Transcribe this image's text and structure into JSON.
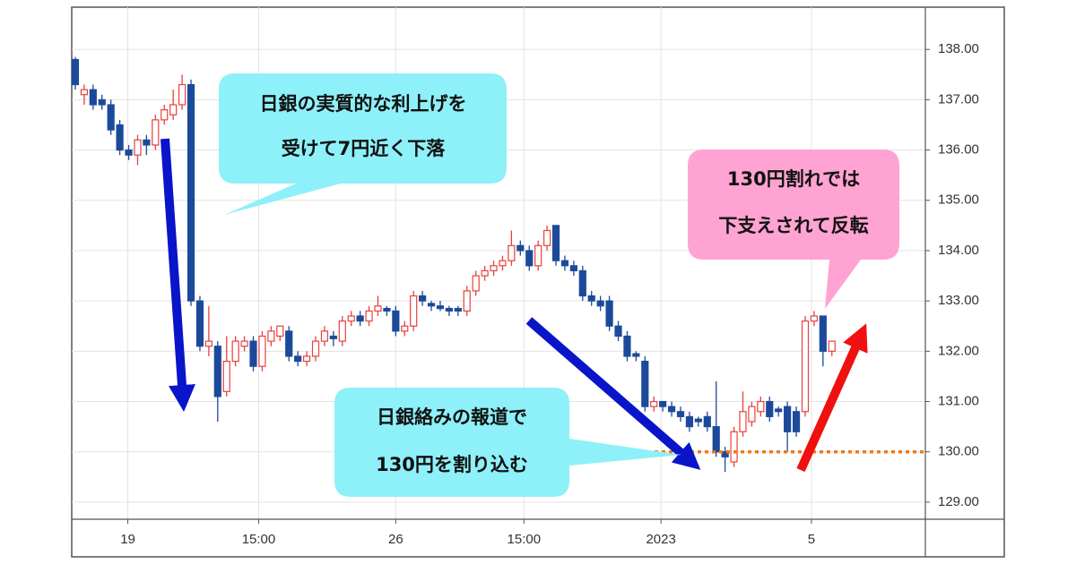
{
  "chart_data": {
    "type": "candlestick",
    "up_color": "#e8413c",
    "down_color": "#1c4a9a",
    "grid": true,
    "open": [
      137.8,
      137.1,
      137.2,
      137.0,
      136.9,
      136.5,
      136.0,
      135.9,
      136.2,
      136.1,
      136.6,
      136.7,
      136.9,
      137.3,
      133.0,
      132.1,
      132.1,
      131.2,
      131.8,
      132.1,
      132.2,
      131.7,
      132.2,
      132.3,
      132.4,
      131.9,
      131.8,
      131.9,
      132.2,
      132.3,
      132.2,
      132.6,
      132.7,
      132.6,
      132.8,
      132.85,
      132.8,
      132.4,
      132.5,
      133.1,
      132.95,
      132.9,
      132.85,
      132.85,
      132.8,
      133.2,
      133.5,
      133.6,
      133.7,
      133.8,
      134.1,
      134.0,
      133.7,
      134.1,
      134.5,
      133.8,
      133.7,
      133.6,
      133.1,
      133.0,
      133.0,
      132.5,
      132.3,
      131.95,
      131.8,
      130.9,
      131.0,
      130.9,
      130.8,
      130.7,
      130.65,
      130.7,
      130.5,
      130.0,
      129.8,
      130.4,
      130.6,
      130.8,
      131.0,
      130.85,
      130.9,
      130.8,
      130.8,
      132.6,
      132.7,
      132.0
    ],
    "high": [
      137.85,
      137.3,
      137.3,
      137.1,
      137.0,
      136.6,
      136.1,
      136.3,
      136.3,
      136.7,
      136.9,
      137.2,
      137.5,
      137.4,
      133.1,
      132.9,
      132.2,
      132.3,
      132.3,
      132.3,
      132.3,
      132.4,
      132.5,
      132.5,
      132.5,
      132.0,
      132.0,
      132.3,
      132.5,
      132.4,
      132.7,
      132.8,
      132.8,
      132.9,
      133.1,
      132.9,
      132.9,
      132.6,
      133.2,
      133.2,
      133.0,
      133.0,
      132.9,
      132.9,
      133.3,
      133.6,
      133.7,
      133.8,
      133.9,
      134.4,
      134.2,
      134.1,
      134.2,
      134.5,
      134.5,
      133.9,
      133.8,
      133.7,
      133.2,
      133.1,
      133.1,
      132.6,
      132.4,
      132.0,
      131.9,
      131.1,
      131.0,
      131.0,
      130.9,
      130.8,
      130.7,
      130.8,
      131.4,
      130.1,
      130.5,
      131.2,
      131.0,
      131.1,
      131.1,
      130.9,
      131.0,
      130.9,
      132.7,
      132.8,
      132.7,
      132.2
    ],
    "low": [
      137.2,
      136.9,
      136.8,
      136.8,
      136.3,
      135.9,
      135.8,
      135.7,
      135.9,
      136.0,
      136.5,
      136.6,
      136.8,
      132.9,
      132.0,
      131.9,
      130.6,
      131.1,
      131.7,
      132.0,
      131.6,
      131.6,
      132.1,
      132.2,
      131.8,
      131.7,
      131.7,
      131.8,
      132.1,
      132.1,
      132.1,
      132.5,
      132.5,
      132.5,
      132.7,
      132.7,
      132.3,
      132.3,
      132.4,
      132.9,
      132.8,
      132.8,
      132.7,
      132.7,
      132.7,
      133.1,
      133.4,
      133.5,
      133.6,
      133.7,
      133.9,
      133.6,
      133.6,
      134.0,
      133.7,
      133.6,
      133.5,
      133.0,
      132.9,
      132.8,
      132.4,
      132.2,
      131.8,
      131.8,
      130.8,
      130.8,
      130.8,
      130.7,
      130.6,
      130.4,
      130.5,
      130.4,
      129.9,
      129.6,
      129.7,
      130.3,
      130.5,
      130.7,
      130.6,
      130.7,
      130.0,
      130.3,
      130.7,
      132.5,
      131.7,
      131.9
    ],
    "close": [
      137.3,
      137.2,
      136.9,
      136.9,
      136.4,
      136.0,
      135.9,
      136.2,
      136.1,
      136.6,
      136.8,
      136.9,
      137.3,
      133.0,
      132.1,
      132.2,
      131.1,
      131.8,
      132.2,
      132.2,
      131.7,
      132.3,
      132.4,
      132.5,
      131.9,
      131.8,
      131.9,
      132.2,
      132.4,
      132.25,
      132.6,
      132.7,
      132.6,
      132.8,
      132.9,
      132.8,
      132.4,
      132.5,
      133.1,
      133.0,
      132.9,
      132.85,
      132.8,
      132.8,
      133.2,
      133.5,
      133.6,
      133.7,
      133.8,
      134.1,
      134.0,
      133.7,
      134.1,
      134.4,
      133.8,
      133.7,
      133.6,
      133.1,
      133.0,
      132.9,
      132.5,
      132.3,
      131.9,
      131.9,
      130.9,
      131.0,
      130.9,
      130.8,
      130.7,
      130.5,
      130.6,
      130.5,
      130.0,
      129.9,
      130.4,
      130.8,
      130.9,
      131.0,
      130.7,
      130.8,
      130.4,
      130.4,
      132.6,
      132.7,
      132.0,
      132.2
    ],
    "xlim": [
      -0.4,
      95.5
    ],
    "xticks": [
      {
        "value": 5.9,
        "label": "19"
      },
      {
        "value": 20.6,
        "label": "15:00"
      },
      {
        "value": 36.0,
        "label": "26"
      },
      {
        "value": 50.4,
        "label": "15:00"
      },
      {
        "value": 65.8,
        "label": "2023"
      },
      {
        "value": 82.7,
        "label": "5"
      }
    ],
    "ylim": [
      128.66,
      138.84
    ],
    "yticks": [
      {
        "value": 129,
        "label": "129.00"
      },
      {
        "value": 130,
        "label": "130.00"
      },
      {
        "value": 131,
        "label": "131.00"
      },
      {
        "value": 132,
        "label": "132.00"
      },
      {
        "value": 133,
        "label": "133.00"
      },
      {
        "value": 134,
        "label": "134.00"
      },
      {
        "value": 135,
        "label": "135.00"
      },
      {
        "value": 136,
        "label": "136.00"
      },
      {
        "value": 137,
        "label": "137.00"
      },
      {
        "value": 138,
        "label": "138.00"
      }
    ],
    "support_line": {
      "value": 130.0,
      "color": "#f07a1a"
    },
    "annotations": [
      {
        "lines": [
          "日銀の実質的な利上げを",
          "受けて7円近く下落"
        ]
      },
      {
        "lines": [
          "130円割れでは",
          "下支えされて反転"
        ]
      },
      {
        "lines": [
          "日銀絡みの報道で",
          "130円を割り込む"
        ]
      }
    ]
  }
}
